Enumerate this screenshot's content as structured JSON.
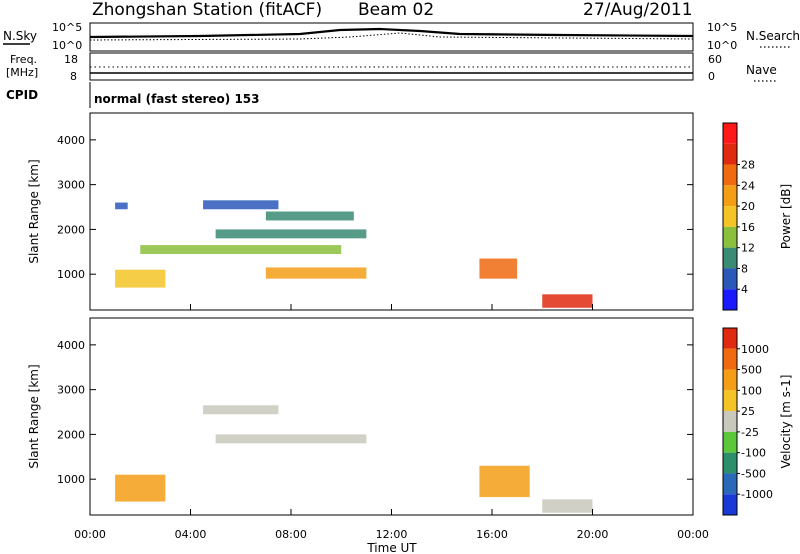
{
  "header": {
    "station": "Zhongshan Station (fitACF)",
    "beam": "Beam 02",
    "date": "27/Aug/2011"
  },
  "strip": {
    "nsky_label": "N.Sky",
    "nsky_ticks": [
      "10^5",
      "10^0"
    ],
    "nsearch_label": "N.Search",
    "nsearch_ticks": [
      "10^5",
      "10^0"
    ],
    "freq_label": "Freq.",
    "freq_unit": "[MHz]",
    "freq_ticks": [
      "18",
      "8"
    ],
    "nave_label": "Nave",
    "nave_ticks": [
      "60",
      "0"
    ],
    "cpid_label": "CPID",
    "cpid_text": "normal (fast stereo) 153"
  },
  "chart_data": [
    {
      "type": "heatmap",
      "name": "power",
      "ylabel": "Slant Range [km]",
      "colorbar_label": "Power [dB]",
      "ylim": [
        200,
        4600
      ],
      "yticks": [
        "1000",
        "2000",
        "3000",
        "4000"
      ],
      "colorbar_ticks": [
        "4",
        "8",
        "12",
        "16",
        "20",
        "24",
        "28"
      ],
      "colors": [
        "#1a1aff",
        "#2a58b8",
        "#3a8b73",
        "#8bc03c",
        "#f4c427",
        "#f49d16",
        "#f06a10",
        "#e02a10",
        "#ff1a1a"
      ],
      "bands": [
        {
          "x": [
            1.0,
            1.5
          ],
          "y": [
            2450,
            2600
          ],
          "level": 1
        },
        {
          "x": [
            4.5,
            7.5
          ],
          "y": [
            2450,
            2650
          ],
          "level": 1
        },
        {
          "x": [
            7.0,
            10.5
          ],
          "y": [
            2200,
            2400
          ],
          "level": 2
        },
        {
          "x": [
            5.0,
            11.0
          ],
          "y": [
            1800,
            2000
          ],
          "level": 2
        },
        {
          "x": [
            2.0,
            10.0
          ],
          "y": [
            1450,
            1650
          ],
          "level": 3
        },
        {
          "x": [
            1.0,
            3.0
          ],
          "y": [
            700,
            1100
          ],
          "level": 4
        },
        {
          "x": [
            7.0,
            11.0
          ],
          "y": [
            900,
            1150
          ],
          "level": 5
        },
        {
          "x": [
            15.5,
            17.0
          ],
          "y": [
            900,
            1350
          ],
          "level": 6
        },
        {
          "x": [
            18.0,
            20.0
          ],
          "y": [
            250,
            550
          ],
          "level": 7
        }
      ]
    },
    {
      "type": "heatmap",
      "name": "velocity",
      "ylabel": "Slant Range [km]",
      "colorbar_label": "Velocity [m s-1]",
      "ylim": [
        200,
        4600
      ],
      "yticks": [
        "1000",
        "2000",
        "3000",
        "4000"
      ],
      "colorbar_ticks": [
        "1000",
        "500",
        "100",
        "25",
        "-25",
        "-100",
        "-500",
        "-1000"
      ],
      "colors": [
        "#1a3ad8",
        "#2a68b8",
        "#2a8f6a",
        "#5ac83a",
        "#c8c8bc",
        "#f4c427",
        "#f49d16",
        "#f06a10",
        "#e02a10"
      ],
      "bands": [
        {
          "x": [
            4.5,
            7.5
          ],
          "y": [
            2450,
            2650
          ],
          "level": 4
        },
        {
          "x": [
            5.0,
            11.0
          ],
          "y": [
            1800,
            2000
          ],
          "level": 4
        },
        {
          "x": [
            1.0,
            3.0
          ],
          "y": [
            500,
            1100
          ],
          "level": 6
        },
        {
          "x": [
            15.5,
            17.5
          ],
          "y": [
            600,
            1300
          ],
          "level": 6
        },
        {
          "x": [
            18.0,
            20.0
          ],
          "y": [
            250,
            550
          ],
          "level": 4
        }
      ]
    }
  ],
  "xaxis": {
    "label": "Time UT",
    "ticks": [
      "00:00",
      "04:00",
      "08:00",
      "12:00",
      "16:00",
      "20:00",
      "00:00"
    ],
    "xlim": [
      0,
      24
    ]
  }
}
